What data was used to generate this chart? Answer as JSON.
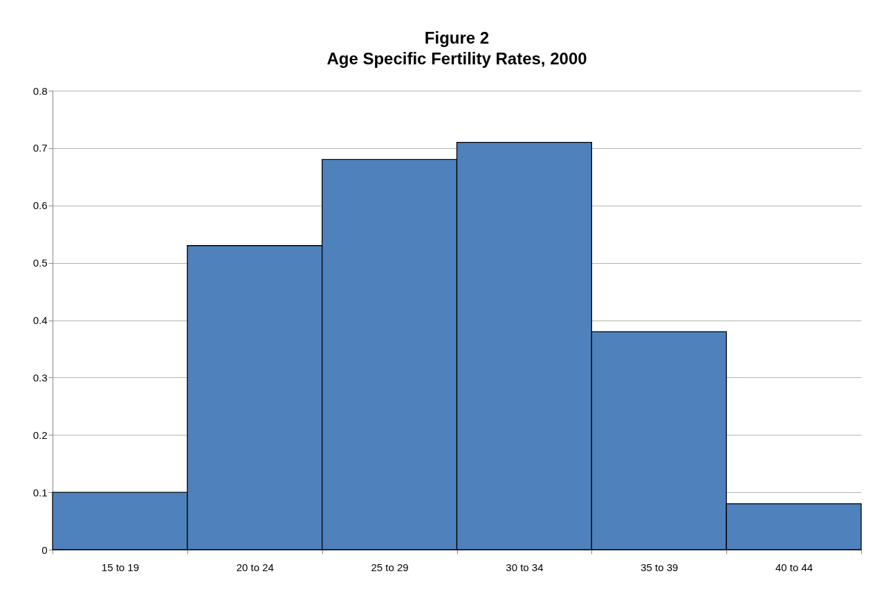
{
  "chart_data": {
    "type": "bar",
    "title": [
      "Figure 2",
      "Age Specific Fertility Rates, 2000"
    ],
    "categories": [
      "15 to 19",
      "20 to 24",
      "25 to 29",
      "30 to 34",
      "35 to 39",
      "40 to 44"
    ],
    "values": [
      0.1,
      0.53,
      0.68,
      0.71,
      0.38,
      0.08
    ],
    "color": "#4f81bd",
    "ylim": [
      0,
      0.8
    ],
    "yticks": [
      0,
      0.1,
      0.2,
      0.3,
      0.4,
      0.5,
      0.6,
      0.7,
      0.8
    ],
    "grid": "y"
  }
}
